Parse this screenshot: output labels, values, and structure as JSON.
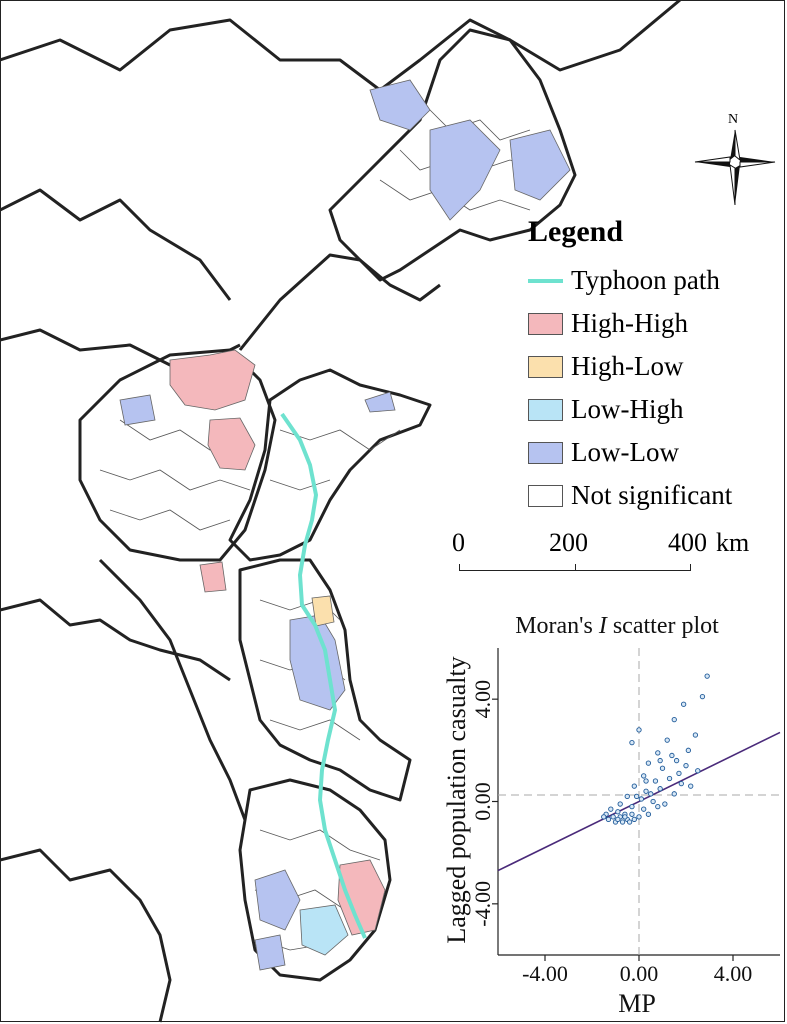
{
  "legend": {
    "title": "Legend",
    "items": [
      {
        "label": "Typhoon path",
        "color": "#6ee2cf",
        "kind": "line"
      },
      {
        "label": "High-High",
        "color": "#f4b8bc",
        "kind": "fill"
      },
      {
        "label": "High-Low",
        "color": "#fbe0ad",
        "kind": "fill"
      },
      {
        "label": "Low-High",
        "color": "#b9e4f6",
        "kind": "fill"
      },
      {
        "label": "Low-Low",
        "color": "#b6c3f0",
        "kind": "fill"
      },
      {
        "label": "Not significant",
        "color": "#ffffff",
        "kind": "fill"
      }
    ]
  },
  "scale_bar": {
    "ticks": [
      "0",
      "200",
      "400"
    ],
    "unit": "km"
  },
  "compass": {
    "north_label": "N",
    "icon": "north-arrow-icon"
  },
  "colors": {
    "boundary": "#222222",
    "county_line": "#555555",
    "regression": "#4a2a7a",
    "points": "#1f5a99"
  },
  "chart_data": {
    "type": "scatter",
    "title": "Moran's I scatter plot",
    "title_prefix": "Moran's ",
    "title_italic": "I",
    "title_suffix": " scatter plot",
    "xlabel": "MP",
    "ylabel": "Lagged population casualty",
    "xlim": [
      -6.0,
      6.0
    ],
    "ylim": [
      -6.0,
      6.0
    ],
    "x_ticks": [
      "-4.00",
      "0.00",
      "4.00"
    ],
    "y_ticks": [
      "-4.00",
      "0.00",
      "4.00"
    ],
    "regression": {
      "slope": 0.45,
      "intercept": 0.0
    },
    "points": [
      [
        2.9,
        4.9
      ],
      [
        2.7,
        4.1
      ],
      [
        1.9,
        3.8
      ],
      [
        1.5,
        3.2
      ],
      [
        0.0,
        2.8
      ],
      [
        -0.3,
        2.3
      ],
      [
        1.2,
        2.4
      ],
      [
        0.8,
        1.9
      ],
      [
        2.1,
        2.0
      ],
      [
        1.6,
        1.6
      ],
      [
        0.4,
        1.5
      ],
      [
        1.0,
        1.3
      ],
      [
        2.5,
        1.2
      ],
      [
        0.2,
        1.0
      ],
      [
        0.7,
        0.8
      ],
      [
        1.3,
        0.9
      ],
      [
        1.8,
        0.7
      ],
      [
        -0.2,
        0.6
      ],
      [
        0.3,
        0.4
      ],
      [
        0.9,
        0.5
      ],
      [
        1.5,
        0.3
      ],
      [
        2.2,
        0.6
      ],
      [
        -0.5,
        0.2
      ],
      [
        0.1,
        0.1
      ],
      [
        0.6,
        0.0
      ],
      [
        1.1,
        -0.1
      ],
      [
        -0.8,
        -0.1
      ],
      [
        -0.3,
        -0.2
      ],
      [
        0.2,
        -0.3
      ],
      [
        0.8,
        -0.2
      ],
      [
        -1.2,
        -0.3
      ],
      [
        -0.9,
        -0.4
      ],
      [
        -0.6,
        -0.5
      ],
      [
        -0.3,
        -0.5
      ],
      [
        0.0,
        -0.6
      ],
      [
        0.4,
        -0.5
      ],
      [
        -1.4,
        -0.5
      ],
      [
        -1.1,
        -0.6
      ],
      [
        -0.8,
        -0.6
      ],
      [
        -0.5,
        -0.7
      ],
      [
        -0.2,
        -0.7
      ],
      [
        -1.3,
        -0.7
      ],
      [
        -1.0,
        -0.8
      ],
      [
        -0.7,
        -0.8
      ],
      [
        -0.4,
        -0.8
      ],
      [
        -1.5,
        -0.6
      ],
      [
        -0.9,
        -0.7
      ],
      [
        -0.6,
        -0.6
      ],
      [
        0.3,
        0.8
      ],
      [
        1.4,
        1.8
      ],
      [
        2.0,
        1.4
      ],
      [
        0.5,
        0.3
      ],
      [
        -0.1,
        0.2
      ],
      [
        1.7,
        1.1
      ],
      [
        0.9,
        1.6
      ],
      [
        2.4,
        2.6
      ]
    ]
  }
}
